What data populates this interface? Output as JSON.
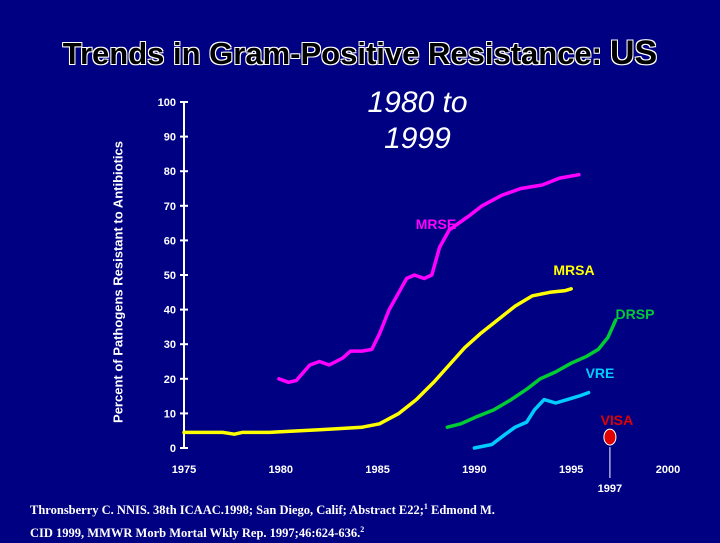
{
  "slide": {
    "title": "Trends in Gram-Positive Resistance:",
    "title_suffix": "US",
    "subtitle_line1": "1980 to",
    "subtitle_line2": "1999",
    "citation_line1a": "Thronsberry C. NNIS. 38th ICAAC.1998; San Diego, Calif; Abstract E22;",
    "citation_line1_sup": "1",
    "citation_line1b": "  Edmond M.",
    "citation_line2a": "CID 1999, MMWR Morb Mortal Wkly Rep. 1997;46:624-636.",
    "citation_line2_sup": "2"
  },
  "colors": {
    "background": "#000082",
    "axis": "#ffffff",
    "MRSE": "#ff00ff",
    "MRSA": "#ffff00",
    "DRSP": "#00cc33",
    "VRE": "#00ccff",
    "VISA": "#e00000",
    "baseline": "#ffff00"
  },
  "chart_data": {
    "type": "line",
    "ylabel": "Percent of Pathogens Resistant to Antibiotics",
    "xlabel": "",
    "xlim": [
      1975,
      2000
    ],
    "ylim": [
      0,
      100
    ],
    "x_ticks": [
      "1975",
      "1980",
      "1985",
      "1990",
      "1995",
      "2000"
    ],
    "y_ticks": [
      "0",
      "10",
      "20",
      "30",
      "40",
      "50",
      "60",
      "70",
      "80",
      "90",
      "100"
    ],
    "annotation": "1997",
    "series": [
      {
        "name": "MRSE",
        "label": "MRSE",
        "color": "#ff00ff",
        "x": [
          1979.9,
          1980.4,
          1980.8,
          1981.5,
          1982.0,
          1982.5,
          1983.2,
          1983.6,
          1984.2,
          1984.7,
          1985.1,
          1985.6,
          1986.1,
          1986.5,
          1986.9,
          1987.4,
          1987.8,
          1988.2,
          1988.7,
          1989.2,
          1989.7,
          1990.4,
          1991.4,
          1992.4,
          1993.5,
          1994.4,
          1995.4
        ],
        "y": [
          20,
          19,
          19.5,
          24,
          25,
          24,
          26,
          28,
          28,
          28.5,
          33,
          40,
          45,
          49,
          50,
          49,
          50,
          58,
          63,
          65,
          67,
          70,
          73,
          75,
          76,
          78,
          79
        ]
      },
      {
        "name": "MRSA",
        "label": "MRSA",
        "color": "#ffff00",
        "x": [
          1984.2,
          1985.1,
          1986.1,
          1987.0,
          1987.9,
          1988.7,
          1989.5,
          1990.3,
          1991.2,
          1992.1,
          1993.0,
          1993.9,
          1994.7,
          1995.0
        ],
        "y": [
          6,
          7,
          10,
          14,
          19,
          24,
          29,
          33,
          37,
          41,
          44,
          45,
          45.5,
          46
        ]
      },
      {
        "name": "DRSP",
        "label": "DRSP",
        "color": "#00cc33",
        "x": [
          1988.6,
          1989.3,
          1990.1,
          1991.0,
          1991.9,
          1992.7,
          1993.4,
          1994.2,
          1995.0,
          1995.8,
          1996.4,
          1996.9,
          1997.3
        ],
        "y": [
          6,
          7,
          9,
          11,
          14,
          17,
          20,
          22,
          24.5,
          26.5,
          28.5,
          32,
          37
        ]
      },
      {
        "name": "VRE",
        "label": "VRE",
        "color": "#00ccff",
        "x": [
          1990.0,
          1990.9,
          1991.6,
          1992.1,
          1992.7,
          1993.1,
          1993.6,
          1994.2,
          1994.8,
          1995.4,
          1995.9
        ],
        "y": [
          0,
          1,
          4,
          6,
          7.5,
          11,
          14,
          13,
          14,
          15,
          16
        ]
      }
    ],
    "baseline": {
      "x": [
        1975.0,
        1976.2,
        1977.0,
        1977.6,
        1978.0,
        1979.4,
        1980.0,
        1981.0,
        1982.0,
        1983.0,
        1984.2
      ],
      "y": [
        4.5,
        4.5,
        4.5,
        4,
        4.5,
        4.5,
        4.7,
        5,
        5.3,
        5.6,
        6
      ]
    },
    "marker": {
      "name": "VISA",
      "label": "VISA",
      "x": 1997,
      "y": 2,
      "color": "#e00000"
    }
  }
}
